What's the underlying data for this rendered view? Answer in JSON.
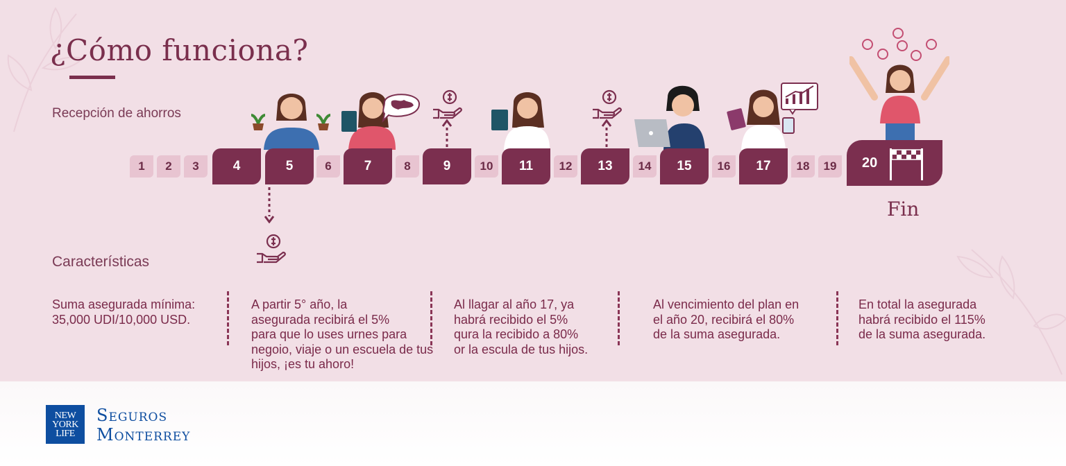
{
  "title": "¿Cómo funciona?",
  "sections": {
    "savings_label": "Recepción de ahorros",
    "features_label": "Características"
  },
  "timeline": {
    "steps": [
      "1",
      "2",
      "3",
      "4",
      "5",
      "6",
      "7",
      "8",
      "9",
      "10",
      "11",
      "12",
      "13",
      "14",
      "15",
      "16",
      "17",
      "18",
      "19",
      "20"
    ],
    "highlighted_steps": [
      4,
      5,
      7,
      9,
      11,
      13,
      15,
      17,
      20
    ],
    "end_label": "Fin"
  },
  "features": [
    {
      "lines": [
        "Suma asegurada mínima:",
        "35,000 UDI/10,000 USD."
      ]
    },
    {
      "lines": [
        "A partir 5° año, la",
        "asegurada recibirá el 5%",
        "para que lo uses urnes para",
        "negoio, viaje o un escuela de tus",
        "hijos, ¡es tu ahoro!"
      ]
    },
    {
      "lines": [
        "Al llagar al año 17, ya",
        "habrá recibido el 5%",
        "qura la recibido a 80%",
        "or la escula de tus hijos."
      ]
    },
    {
      "lines": [
        "Al vencimiento del plan en",
        "el año 20, recibirá el 80%",
        "de la suma asegurada."
      ]
    },
    {
      "lines": [
        "En total la asegurada",
        "habrá recibido el 115%",
        "de la suma asegurada."
      ]
    }
  ],
  "brand": {
    "logo_lines": [
      "NEW",
      "YORK",
      "LIFE"
    ],
    "name_line1": "Seguros",
    "name_line2": "Monterrey"
  },
  "colors": {
    "primary": "#7b2f4f",
    "light_step": "#e8c4d1",
    "background": "#f2dfe6",
    "brand_blue": "#0e4ea0"
  },
  "icons": [
    "money-hand-icon",
    "dashed-arrow-up-icon",
    "dashed-arrow-down-icon",
    "finish-flag-icon",
    "coin-icon"
  ]
}
